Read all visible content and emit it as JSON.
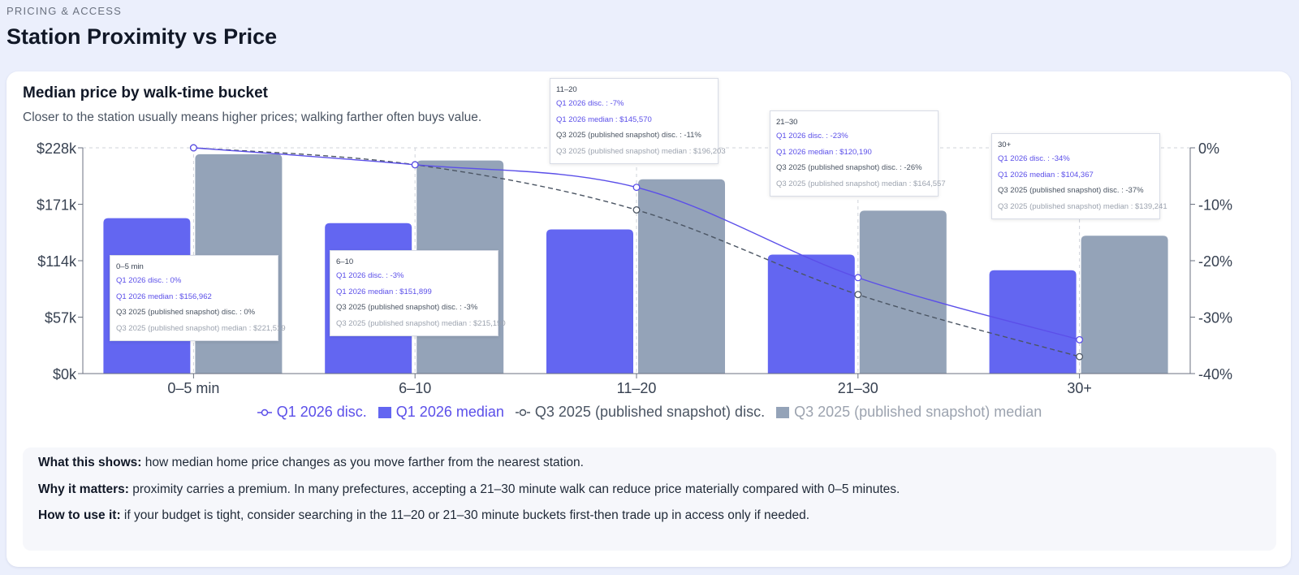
{
  "header": {
    "eyebrow": "PRICING & ACCESS",
    "title": "Station Proximity vs Price"
  },
  "card": {
    "title": "Median price by walk-time bucket",
    "subtitle": "Closer to the station usually means higher prices; walking farther often buys value."
  },
  "chart_data": {
    "type": "bar",
    "categories": [
      "0–5 min",
      "6–10",
      "11–20",
      "21–30",
      "30+"
    ],
    "y_left": {
      "ticks": [
        "$0k",
        "$57k",
        "$114k",
        "$171k",
        "$228k"
      ],
      "range": [
        0,
        228000
      ]
    },
    "y_right": {
      "ticks": [
        "0%",
        "-10%",
        "-20%",
        "-30%",
        "-40%"
      ],
      "range": [
        -40,
        0
      ]
    },
    "grid": "dashed",
    "series": [
      {
        "name": "Q1 2026 disc.",
        "kind": "line",
        "axis": "right",
        "color": "#5b4fe9",
        "values": [
          0,
          -3,
          -7,
          -23,
          -34
        ]
      },
      {
        "name": "Q1 2026 median",
        "kind": "bar",
        "axis": "left",
        "color": "#6366f1",
        "values": [
          156962,
          151899,
          145570,
          120190,
          104367
        ]
      },
      {
        "name": "Q3 2025 (published snapshot) disc.",
        "kind": "line",
        "dashed": true,
        "axis": "right",
        "color": "#4b5563",
        "values": [
          0,
          -3,
          -11,
          -26,
          -37
        ]
      },
      {
        "name": "Q3 2025 (published snapshot) median",
        "kind": "bar",
        "axis": "left",
        "color": "#94a3b8",
        "values": [
          221519,
          215190,
          196203,
          164557,
          139241
        ]
      }
    ],
    "legend_position": "bottom"
  },
  "tooltips": [
    {
      "title": "0–5 min",
      "rows": [
        "Q1 2026 disc. : 0%",
        "Q1 2026 median : $156,962",
        "Q3 2025 (published snapshot) disc. : 0%",
        "Q3 2025 (published snapshot) median : $221,519"
      ]
    },
    {
      "title": "6–10",
      "rows": [
        "Q1 2026 disc. : -3%",
        "Q1 2026 median : $151,899",
        "Q3 2025 (published snapshot) disc. : -3%",
        "Q3 2025 (published snapshot) median : $215,190"
      ]
    },
    {
      "title": "11–20",
      "rows": [
        "Q1 2026 disc. : -7%",
        "Q1 2026 median : $145,570",
        "Q3 2025 (published snapshot) disc. : -11%",
        "Q3 2025 (published snapshot) median : $196,203"
      ]
    },
    {
      "title": "21–30",
      "rows": [
        "Q1 2026 disc. : -23%",
        "Q1 2026 median : $120,190",
        "Q3 2025 (published snapshot) disc. : -26%",
        "Q3 2025 (published snapshot) median : $164,557"
      ]
    },
    {
      "title": "30+",
      "rows": [
        "Q1 2026 disc. : -34%",
        "Q1 2026 median : $104,367",
        "Q3 2025 (published snapshot) disc. : -37%",
        "Q3 2025 (published snapshot) median : $139,241"
      ]
    }
  ],
  "notes": [
    {
      "label": "What this shows:",
      "text": " how median home price changes as you move farther from the nearest station."
    },
    {
      "label": "Why it matters:",
      "text": " proximity carries a premium. In many prefectures, accepting a 21–30 minute walk can reduce price materially compared with 0–5 minutes."
    },
    {
      "label": "How to use it:",
      "text": " if your budget is tight, consider searching in the 11–20 or 21–30 minute buckets first-then trade up in access only if needed."
    }
  ]
}
